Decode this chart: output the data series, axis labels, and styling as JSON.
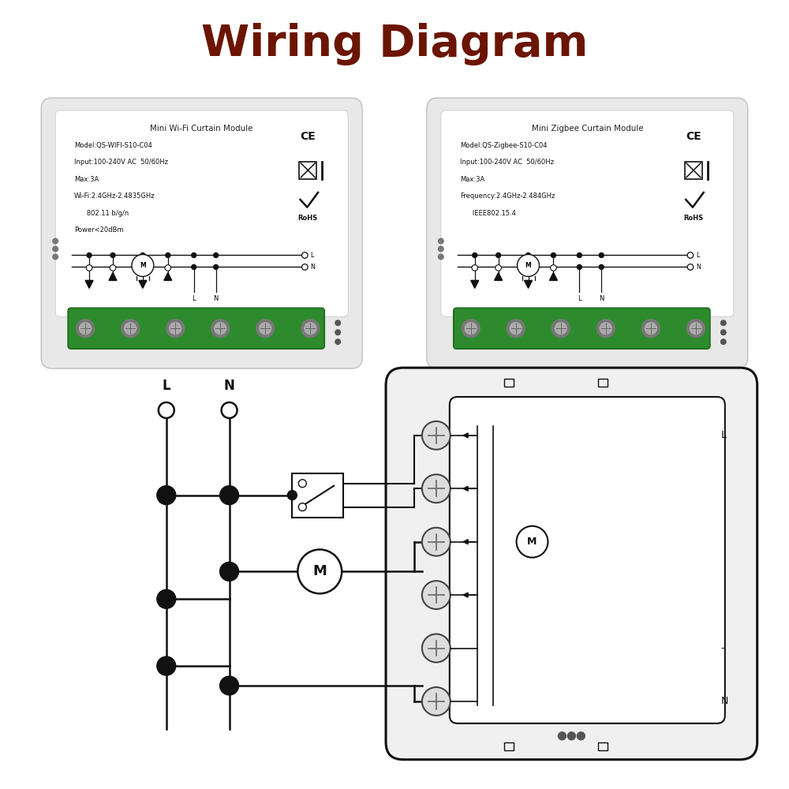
{
  "title": "Wiring Diagram",
  "title_color": "#6B1500",
  "title_fontsize": 40,
  "bg_color": "#FFFFFF",
  "green_color": "#2D8B2D",
  "black": "#111111",
  "wifi_title": "Mini Wi-Fi Curtain Module",
  "wifi_lines": [
    "Model:QS-WIFI-S10-C04",
    "Input:100-240V AC  50/60Hz",
    "Max:3A",
    "Wi-Fi:2.4GHz-2.4835GHz",
    "      802.11 b/g/n",
    "Power<20dBm"
  ],
  "zigbee_title": "Mini Zigbee Curtain Module",
  "zigbee_lines": [
    "Model:QS-Zigbee-S10-C04",
    "Input:100-240V AC  50/60Hz",
    "Max:3A",
    "Frequency:2.4GHz-2.484GHz",
    "      IEEE802.15.4"
  ]
}
